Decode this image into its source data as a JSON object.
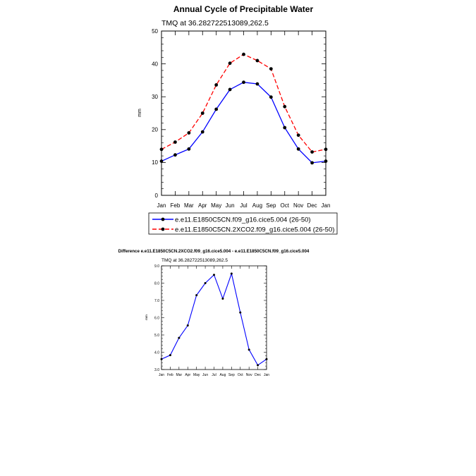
{
  "chart_data": [
    {
      "type": "line",
      "title": "Annual Cycle of Precipitable Water",
      "subtitle": "TMQ at 36.282722513089,262.5",
      "ylabel": "mm",
      "xlabel": "",
      "ylim": [
        0,
        50
      ],
      "yticks": [
        "0",
        "10",
        "20",
        "30",
        "40",
        "50"
      ],
      "categories": [
        "Jan",
        "Feb",
        "Mar",
        "Apr",
        "May",
        "Jun",
        "Jul",
        "Aug",
        "Sep",
        "Oct",
        "Nov",
        "Dec",
        "Jan"
      ],
      "legend_position": "bottom",
      "grid": false,
      "series": [
        {
          "name": "e.e11.E1850C5CN.f09_g16.cice5.004 (26-50)",
          "color": "#0000ff",
          "style": "solid",
          "values": [
            10.4,
            12.3,
            14.1,
            19.3,
            26.2,
            32.2,
            34.4,
            33.9,
            29.9,
            20.6,
            14.1,
            9.9,
            10.4
          ]
        },
        {
          "name": "e.e11.E1850C5CN.2XCO2.f09_g16.cice5.004 (26-50)",
          "color": "#ff0000",
          "style": "dashed",
          "values": [
            14.0,
            16.2,
            19.0,
            25.0,
            33.6,
            40.2,
            42.9,
            41.0,
            38.5,
            27.0,
            18.3,
            13.2,
            14.0
          ]
        }
      ]
    },
    {
      "type": "line",
      "title": "Difference e.e11.E1850C5CN.2XCO2.f09_g16.cice5.004 - e.e11.E1850C5CN.f09_g16.cice5.004",
      "subtitle": "TMQ at 36.282722513089,262.5",
      "ylabel": "mm",
      "xlabel": "",
      "ylim": [
        3.0,
        9.0
      ],
      "yticks": [
        "3.0",
        "4.0",
        "5.0",
        "6.0",
        "7.0",
        "8.0",
        "9.0"
      ],
      "categories": [
        "Jan",
        "Feb",
        "Mar",
        "Apr",
        "May",
        "Jun",
        "Jul",
        "Aug",
        "Sep",
        "Oct",
        "Nov",
        "Dec",
        "Jan"
      ],
      "grid": false,
      "series": [
        {
          "color": "#0000ff",
          "style": "solid",
          "values": [
            3.6,
            3.83,
            4.83,
            5.55,
            7.3,
            8.0,
            8.48,
            7.1,
            8.55,
            6.3,
            4.15,
            3.25,
            3.6
          ]
        }
      ]
    }
  ]
}
